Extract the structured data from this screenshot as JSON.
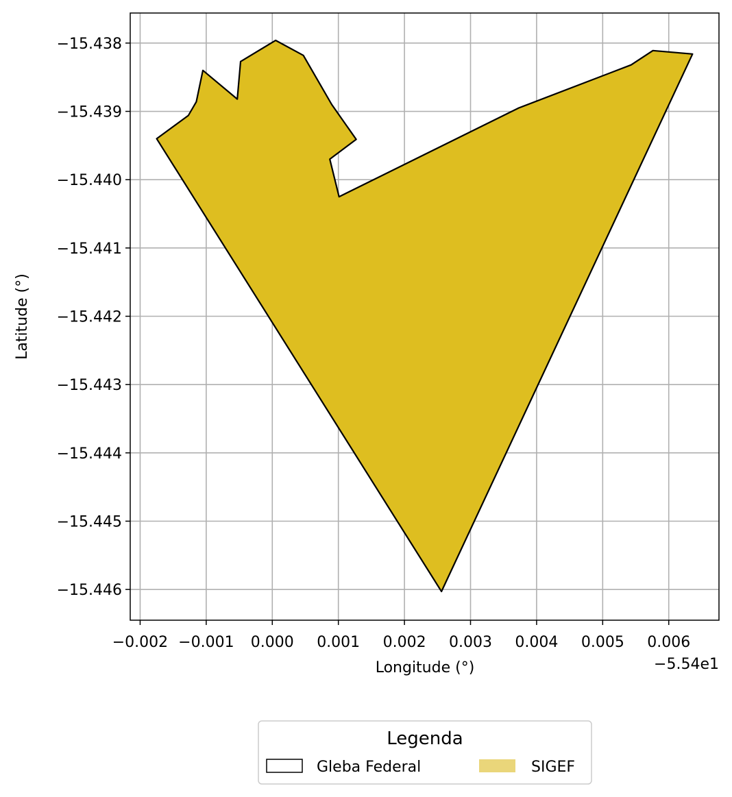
{
  "chart_data": {
    "type": "map",
    "xlabel": "Longitude (°)",
    "ylabel": "Latitude (°)",
    "x_offset_label": "−5.54e1",
    "xlim": [
      -0.00215,
      0.00676
    ],
    "ylim": [
      -15.44645,
      -15.43756
    ],
    "grid": true,
    "x_ticks": [
      {
        "value": -0.002,
        "label": "−0.002"
      },
      {
        "value": -0.001,
        "label": "−0.001"
      },
      {
        "value": 0.0,
        "label": "0.000"
      },
      {
        "value": 0.001,
        "label": "0.001"
      },
      {
        "value": 0.002,
        "label": "0.002"
      },
      {
        "value": 0.003,
        "label": "0.003"
      },
      {
        "value": 0.004,
        "label": "0.004"
      },
      {
        "value": 0.005,
        "label": "0.005"
      },
      {
        "value": 0.006,
        "label": "0.006"
      }
    ],
    "y_ticks": [
      {
        "value": -15.438,
        "label": "−15.438"
      },
      {
        "value": -15.439,
        "label": "−15.439"
      },
      {
        "value": -15.44,
        "label": "−15.440"
      },
      {
        "value": -15.441,
        "label": "−15.441"
      },
      {
        "value": -15.442,
        "label": "−15.442"
      },
      {
        "value": -15.443,
        "label": "−15.443"
      },
      {
        "value": -15.444,
        "label": "−15.444"
      },
      {
        "value": -15.445,
        "label": "−15.445"
      },
      {
        "value": -15.446,
        "label": "−15.446"
      }
    ],
    "polygon_coords": [
      [
        -0.00175,
        -15.4394
      ],
      [
        -0.00127,
        -15.43906
      ],
      [
        -0.00115,
        -15.43886
      ],
      [
        -0.00105,
        -15.4384
      ],
      [
        -0.00053,
        -15.43882
      ],
      [
        -0.00048,
        -15.43827
      ],
      [
        5e-05,
        -15.43796
      ],
      [
        0.00047,
        -15.43818
      ],
      [
        0.0009,
        -15.4389
      ],
      [
        0.00127,
        -15.43941
      ],
      [
        0.00087,
        -15.4397
      ],
      [
        0.00101,
        -15.44025
      ],
      [
        0.00373,
        -15.43895
      ],
      [
        0.00543,
        -15.43832
      ],
      [
        0.00576,
        -15.43811
      ],
      [
        0.00636,
        -15.43816
      ],
      [
        0.00256,
        -15.44603
      ]
    ],
    "layers": [
      {
        "name": "Gleba Federal",
        "fill": "none",
        "stroke": "#000000"
      },
      {
        "name": "SIGEF",
        "fill": "#debe20",
        "legend_fill": "#ead67a",
        "stroke": "#000000"
      }
    ],
    "legend": {
      "title": "Legenda",
      "placement": "bottom-center",
      "entries": [
        "Gleba Federal",
        "SIGEF"
      ]
    }
  }
}
